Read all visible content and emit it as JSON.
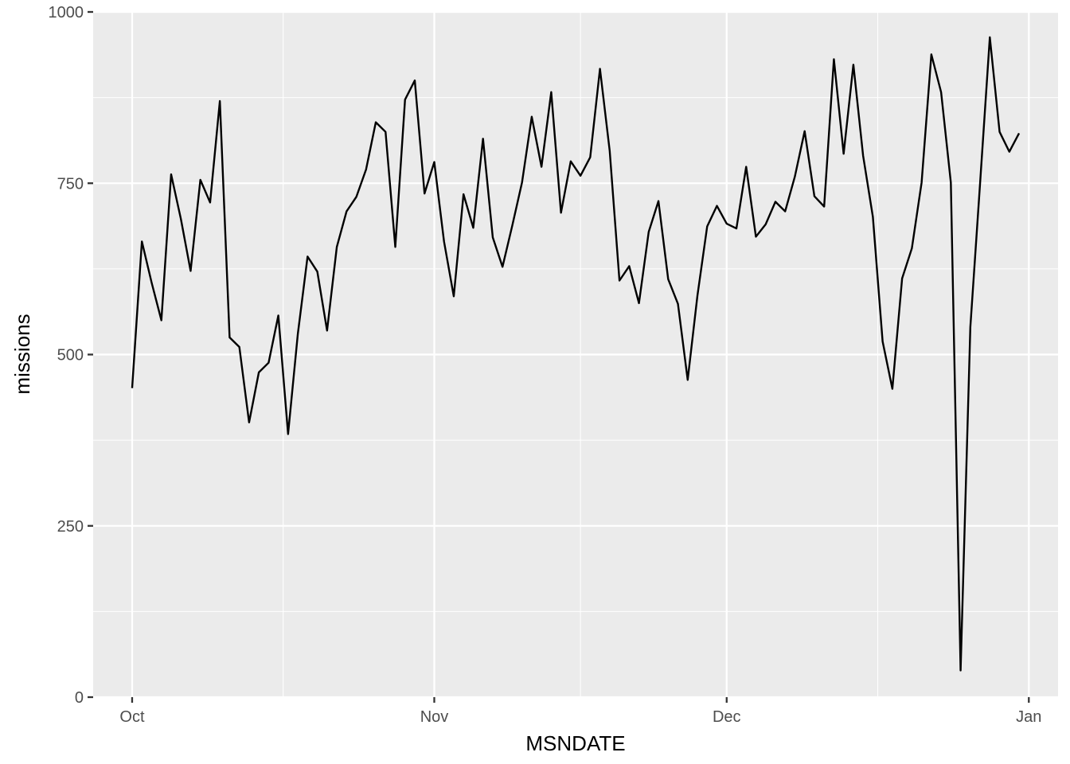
{
  "chart_data": {
    "type": "line",
    "xlabel": "MSNDATE",
    "ylabel": "missions",
    "x_ticks": [
      {
        "date": "1965-10-01",
        "label": "Oct"
      },
      {
        "date": "1965-11-01",
        "label": "Nov"
      },
      {
        "date": "1965-12-01",
        "label": "Dec"
      },
      {
        "date": "1966-01-01",
        "label": "Jan"
      }
    ],
    "y_ticks": [
      0,
      250,
      500,
      750,
      1000
    ],
    "xlim": [
      "1965-09-27",
      "1966-01-04"
    ],
    "ylim": [
      0,
      1000
    ],
    "grid": true,
    "colors": {
      "panel": "#ebebeb",
      "grid": "#ffffff",
      "line": "#000000",
      "tick_label": "#4d4d4d",
      "tick_mark": "#333333"
    },
    "series": [
      {
        "x": [
          "1965-10-01",
          "1965-10-02",
          "1965-10-03",
          "1965-10-04",
          "1965-10-05",
          "1965-10-06",
          "1965-10-07",
          "1965-10-08",
          "1965-10-09",
          "1965-10-10",
          "1965-10-11",
          "1965-10-12",
          "1965-10-13",
          "1965-10-14",
          "1965-10-15",
          "1965-10-16",
          "1965-10-17",
          "1965-10-18",
          "1965-10-19",
          "1965-10-20",
          "1965-10-21",
          "1965-10-22",
          "1965-10-23",
          "1965-10-24",
          "1965-10-25",
          "1965-10-26",
          "1965-10-27",
          "1965-10-28",
          "1965-10-29",
          "1965-10-30",
          "1965-10-31",
          "1965-11-01",
          "1965-11-02",
          "1965-11-03",
          "1965-11-04",
          "1965-11-05",
          "1965-11-06",
          "1965-11-07",
          "1965-11-08",
          "1965-11-09",
          "1965-11-10",
          "1965-11-11",
          "1965-11-12",
          "1965-11-13",
          "1965-11-14",
          "1965-11-15",
          "1965-11-16",
          "1965-11-17",
          "1965-11-18",
          "1965-11-19",
          "1965-11-20",
          "1965-11-21",
          "1965-11-22",
          "1965-11-23",
          "1965-11-24",
          "1965-11-25",
          "1965-11-26",
          "1965-11-27",
          "1965-11-28",
          "1965-11-29",
          "1965-11-30",
          "1965-12-01",
          "1965-12-02",
          "1965-12-03",
          "1965-12-04",
          "1965-12-05",
          "1965-12-06",
          "1965-12-07",
          "1965-12-08",
          "1965-12-09",
          "1965-12-10",
          "1965-12-11",
          "1965-12-12",
          "1965-12-13",
          "1965-12-14",
          "1965-12-15",
          "1965-12-16",
          "1965-12-17",
          "1965-12-18",
          "1965-12-19",
          "1965-12-20",
          "1965-12-21",
          "1965-12-22",
          "1965-12-23",
          "1965-12-24",
          "1965-12-25",
          "1965-12-26",
          "1965-12-27",
          "1965-12-28",
          "1965-12-29",
          "1965-12-30",
          "1965-12-31"
        ],
        "y": [
          451,
          665,
          605,
          550,
          763,
          698,
          622,
          755,
          722,
          870,
          525,
          511,
          401,
          474,
          488,
          557,
          384,
          530,
          643,
          621,
          535,
          657,
          709,
          730,
          770,
          839,
          825,
          657,
          872,
          900,
          735,
          781,
          665,
          585,
          734,
          685,
          815,
          671,
          628,
          688,
          751,
          847,
          774,
          883,
          707,
          782,
          761,
          788,
          917,
          797,
          608,
          629,
          575,
          679,
          724,
          610,
          574,
          463,
          586,
          687,
          717,
          691,
          684,
          774,
          672,
          690,
          723,
          709,
          760,
          826,
          731,
          716,
          931,
          793,
          923,
          790,
          701,
          519,
          450,
          611,
          655,
          751,
          938,
          883,
          751,
          39,
          540,
          750,
          963,
          825,
          796,
          823
        ]
      }
    ]
  }
}
